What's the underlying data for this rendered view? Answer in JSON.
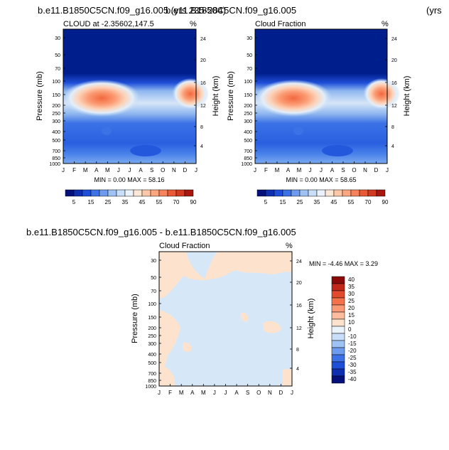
{
  "page": {
    "title_left": "b.e11.B1850C5CN.f09_g16.005 (yrs 235-284)",
    "title_right": "b.e11.B1850C5CN.f09_g16.005",
    "title_right_suffix": "(yrs",
    "diff_title": "b.e11.B1850C5CN.f09_g16.005 - b.e11.B1850C5CN.f09_g16.005"
  },
  "colors": {
    "plot_fill": "#001e8c",
    "diff_base": "#d6e8f8",
    "diff_pos": "#fde3cd"
  },
  "chart_data": [
    {
      "type": "heatmap",
      "title": "CLOUD at -2.35602,147.5",
      "unit": "%",
      "xlabel": "",
      "ylabel": "Pressure (mb)",
      "ylabel_right": "Height (km)",
      "x_ticks": [
        "J",
        "F",
        "M",
        "A",
        "M",
        "J",
        "J",
        "A",
        "S",
        "O",
        "N",
        "D",
        "J"
      ],
      "y_ticks": [
        "30",
        "50",
        "70",
        "100",
        "150",
        "200",
        "250",
        "300",
        "400",
        "500",
        "700",
        "850",
        "1000"
      ],
      "y_right_ticks": [
        "24",
        "20",
        "16",
        "12",
        "8",
        "4"
      ],
      "stats": "MIN =   0.00 MAX =  58.16",
      "colorbar_labels": [
        "5",
        "15",
        "25",
        "35",
        "45",
        "55",
        "70",
        "90"
      ]
    },
    {
      "type": "heatmap",
      "title": "Cloud Fraction",
      "unit": "%",
      "xlabel": "",
      "ylabel": "Pressure (mb)",
      "ylabel_right": "Height (km)",
      "x_ticks": [
        "J",
        "F",
        "M",
        "A",
        "M",
        "J",
        "J",
        "A",
        "S",
        "O",
        "N",
        "D",
        "J"
      ],
      "y_ticks": [
        "30",
        "50",
        "70",
        "100",
        "150",
        "200",
        "250",
        "300",
        "400",
        "500",
        "700",
        "850",
        "1000"
      ],
      "y_right_ticks": [
        "24",
        "20",
        "16",
        "12",
        "8",
        "4"
      ],
      "stats": "MIN =   0.00 MAX =  58.65",
      "colorbar_labels": [
        "5",
        "15",
        "25",
        "35",
        "45",
        "55",
        "70",
        "90"
      ]
    },
    {
      "type": "heatmap",
      "title": "Cloud Fraction",
      "unit": "%",
      "xlabel": "",
      "ylabel": "Pressure (mb)",
      "ylabel_right": "Height (km)",
      "x_ticks": [
        "J",
        "F",
        "M",
        "A",
        "M",
        "J",
        "J",
        "A",
        "S",
        "O",
        "N",
        "D",
        "J"
      ],
      "y_ticks": [
        "30",
        "50",
        "70",
        "100",
        "150",
        "200",
        "250",
        "300",
        "400",
        "500",
        "700",
        "850",
        "1000"
      ],
      "y_right_ticks": [
        "24",
        "20",
        "16",
        "12",
        "8",
        "4"
      ],
      "stats": "MIN =  -4.46 MAX =   3.29",
      "colorbar_labels": [
        "40",
        "35",
        "30",
        "25",
        "20",
        "15",
        "10",
        "0",
        "-10",
        "-15",
        "-20",
        "-25",
        "-30",
        "-35",
        "-40"
      ]
    }
  ]
}
